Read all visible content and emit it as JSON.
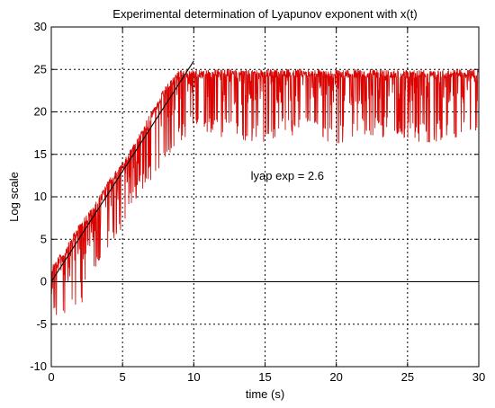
{
  "chart_data": {
    "type": "line",
    "title": "Experimental determination of Lyapunov exponent with x(t)",
    "xlabel": "time (s)",
    "ylabel": "Log scale",
    "xlim": [
      0,
      30
    ],
    "ylim": [
      -10,
      30
    ],
    "xticks": [
      0,
      5,
      10,
      15,
      20,
      25,
      30
    ],
    "yticks": [
      -10,
      -5,
      0,
      5,
      10,
      15,
      20,
      25,
      30
    ],
    "grid": true,
    "annotation": "lyap exp = 2.6",
    "series": [
      {
        "style": "noisy",
        "color": "#e00000",
        "dark_color": "#6b2a10",
        "envelope": {
          "x": [
            0,
            1,
            2,
            3,
            4,
            5,
            6,
            7,
            8,
            9,
            10,
            12,
            14,
            16,
            18,
            20,
            22,
            24,
            26,
            28,
            30
          ],
          "upper": [
            2,
            4,
            7,
            9,
            12,
            14,
            17,
            20,
            23,
            25,
            25,
            25,
            25,
            25,
            25,
            25,
            25,
            25,
            25,
            25,
            25
          ],
          "drop_to": [
            -5,
            -5,
            -3,
            0,
            4,
            6,
            10,
            12,
            14,
            16,
            18,
            17,
            16,
            17,
            17,
            16,
            17,
            17,
            16,
            17,
            17
          ]
        }
      },
      {
        "style": "fit",
        "color": "#000000",
        "x": [
          0,
          10
        ],
        "y": [
          0,
          26
        ]
      }
    ],
    "reference_line": {
      "y": 0,
      "color": "#000000"
    }
  }
}
